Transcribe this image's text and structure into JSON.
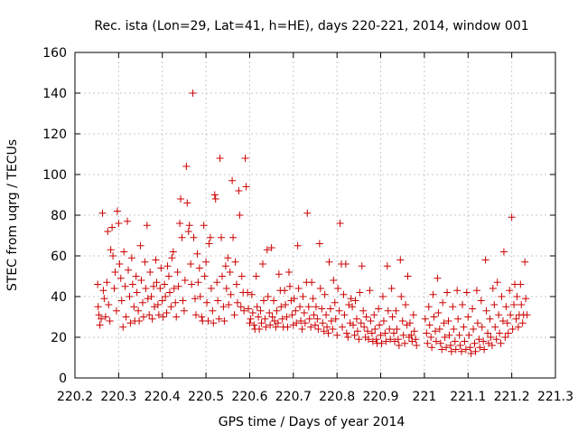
{
  "chart_data": {
    "type": "scatter",
    "title": "Rec. ista (Lon=29, Lat=41, h=HE), days 220-221, 2014, window 001",
    "xlabel": "GPS time / Days of year 2014",
    "ylabel": "STEC from uqrg / TECUs",
    "xlim": [
      220.2,
      221.3
    ],
    "ylim": [
      0,
      160
    ],
    "xticks": [
      "220.2",
      "220.3",
      "220.4",
      "220.5",
      "220.6",
      "220.7",
      "220.8",
      "220.9",
      "221",
      "221.1",
      "221.2",
      "221.3"
    ],
    "yticks": [
      "0",
      "20",
      "40",
      "60",
      "80",
      "100",
      "120",
      "140",
      "160"
    ],
    "grid": true,
    "marker": "plus",
    "color": "#cc0000",
    "points": [
      [
        220.252,
        46
      ],
      [
        220.253,
        35
      ],
      [
        220.255,
        31
      ],
      [
        220.257,
        26
      ],
      [
        220.26,
        29
      ],
      [
        220.263,
        81
      ],
      [
        220.265,
        43
      ],
      [
        220.267,
        39
      ],
      [
        220.27,
        30
      ],
      [
        220.273,
        47
      ],
      [
        220.275,
        72
      ],
      [
        220.277,
        36
      ],
      [
        220.28,
        28
      ],
      [
        220.282,
        63
      ],
      [
        220.285,
        74
      ],
      [
        220.287,
        60
      ],
      [
        220.29,
        44
      ],
      [
        220.292,
        52
      ],
      [
        220.295,
        33
      ],
      [
        220.297,
        82
      ],
      [
        220.3,
        76
      ],
      [
        220.302,
        56
      ],
      [
        220.305,
        49
      ],
      [
        220.307,
        38
      ],
      [
        220.31,
        25
      ],
      [
        220.312,
        62
      ],
      [
        220.315,
        45
      ],
      [
        220.317,
        30
      ],
      [
        220.32,
        77
      ],
      [
        220.322,
        53
      ],
      [
        220.325,
        40
      ],
      [
        220.327,
        27
      ],
      [
        220.33,
        59
      ],
      [
        220.332,
        46
      ],
      [
        220.335,
        35
      ],
      [
        220.337,
        28
      ],
      [
        220.34,
        50
      ],
      [
        220.342,
        42
      ],
      [
        220.345,
        33
      ],
      [
        220.347,
        28
      ],
      [
        220.35,
        65
      ],
      [
        220.352,
        48
      ],
      [
        220.355,
        37
      ],
      [
        220.357,
        30
      ],
      [
        220.36,
        57
      ],
      [
        220.362,
        44
      ],
      [
        220.365,
        75
      ],
      [
        220.367,
        39
      ],
      [
        220.37,
        31
      ],
      [
        220.372,
        52
      ],
      [
        220.375,
        40
      ],
      [
        220.377,
        29
      ],
      [
        220.38,
        45
      ],
      [
        220.382,
        35
      ],
      [
        220.385,
        58
      ],
      [
        220.387,
        47
      ],
      [
        220.39,
        36
      ],
      [
        220.392,
        31
      ],
      [
        220.395,
        44
      ],
      [
        220.397,
        54
      ],
      [
        220.4,
        38
      ],
      [
        220.402,
        30
      ],
      [
        220.405,
        46
      ],
      [
        220.407,
        40
      ],
      [
        220.41,
        32
      ],
      [
        220.412,
        55
      ],
      [
        220.415,
        50
      ],
      [
        220.417,
        42
      ],
      [
        220.42,
        35
      ],
      [
        220.422,
        59
      ],
      [
        220.425,
        62
      ],
      [
        220.427,
        44
      ],
      [
        220.43,
        37
      ],
      [
        220.432,
        30
      ],
      [
        220.435,
        52
      ],
      [
        220.437,
        45
      ],
      [
        220.44,
        76
      ],
      [
        220.442,
        88
      ],
      [
        220.445,
        69
      ],
      [
        220.447,
        38
      ],
      [
        220.45,
        33
      ],
      [
        220.452,
        48
      ],
      [
        220.455,
        104
      ],
      [
        220.457,
        86
      ],
      [
        220.46,
        72
      ],
      [
        220.462,
        75
      ],
      [
        220.465,
        56
      ],
      [
        220.467,
        46
      ],
      [
        220.47,
        140
      ],
      [
        220.472,
        69
      ],
      [
        220.475,
        39
      ],
      [
        220.477,
        31
      ],
      [
        220.48,
        61
      ],
      [
        220.482,
        47
      ],
      [
        220.485,
        54
      ],
      [
        220.487,
        40
      ],
      [
        220.49,
        30
      ],
      [
        220.492,
        28
      ],
      [
        220.495,
        75
      ],
      [
        220.497,
        50
      ],
      [
        220.5,
        57
      ],
      [
        220.502,
        37
      ],
      [
        220.505,
        28
      ],
      [
        220.507,
        66
      ],
      [
        220.51,
        69
      ],
      [
        220.512,
        44
      ],
      [
        220.515,
        33
      ],
      [
        220.517,
        27
      ],
      [
        220.52,
        90
      ],
      [
        220.522,
        88
      ],
      [
        220.525,
        47
      ],
      [
        220.527,
        38
      ],
      [
        220.53,
        29
      ],
      [
        220.532,
        108
      ],
      [
        220.535,
        69
      ],
      [
        220.537,
        50
      ],
      [
        220.54,
        35
      ],
      [
        220.542,
        28
      ],
      [
        220.545,
        55
      ],
      [
        220.547,
        44
      ],
      [
        220.55,
        59
      ],
      [
        220.552,
        36
      ],
      [
        220.555,
        52
      ],
      [
        220.557,
        41
      ],
      [
        220.56,
        97
      ],
      [
        220.562,
        69
      ],
      [
        220.565,
        31
      ],
      [
        220.567,
        57
      ],
      [
        220.57,
        46
      ],
      [
        220.572,
        37
      ],
      [
        220.575,
        92
      ],
      [
        220.577,
        80
      ],
      [
        220.58,
        35
      ],
      [
        220.582,
        50
      ],
      [
        220.585,
        42
      ],
      [
        220.587,
        33
      ],
      [
        220.59,
        108
      ],
      [
        220.592,
        94
      ],
      [
        220.595,
        42
      ],
      [
        220.597,
        34
      ],
      [
        220.6,
        27
      ],
      [
        220.602,
        29
      ],
      [
        220.605,
        41
      ],
      [
        220.607,
        32
      ],
      [
        220.61,
        26
      ],
      [
        220.612,
        24
      ],
      [
        220.615,
        50
      ],
      [
        220.617,
        35
      ],
      [
        220.62,
        30
      ],
      [
        220.622,
        24
      ],
      [
        220.625,
        33
      ],
      [
        220.627,
        27
      ],
      [
        220.63,
        56
      ],
      [
        220.632,
        38
      ],
      [
        220.635,
        29
      ],
      [
        220.637,
        25
      ],
      [
        220.64,
        63
      ],
      [
        220.642,
        40
      ],
      [
        220.645,
        32
      ],
      [
        220.647,
        26
      ],
      [
        220.65,
        64
      ],
      [
        220.652,
        30
      ],
      [
        220.655,
        38
      ],
      [
        220.657,
        28
      ],
      [
        220.66,
        25
      ],
      [
        220.662,
        33
      ],
      [
        220.665,
        27
      ],
      [
        220.667,
        51
      ],
      [
        220.67,
        43
      ],
      [
        220.672,
        35
      ],
      [
        220.675,
        29
      ],
      [
        220.677,
        25
      ],
      [
        220.68,
        43
      ],
      [
        220.682,
        36
      ],
      [
        220.685,
        30
      ],
      [
        220.687,
        25
      ],
      [
        220.69,
        52
      ],
      [
        220.692,
        45
      ],
      [
        220.695,
        38
      ],
      [
        220.697,
        31
      ],
      [
        220.7,
        26
      ],
      [
        220.702,
        39
      ],
      [
        220.705,
        33
      ],
      [
        220.707,
        27
      ],
      [
        220.71,
        65
      ],
      [
        220.712,
        44
      ],
      [
        220.715,
        35
      ],
      [
        220.717,
        28
      ],
      [
        220.72,
        24
      ],
      [
        220.722,
        40
      ],
      [
        220.725,
        32
      ],
      [
        220.727,
        27
      ],
      [
        220.73,
        47
      ],
      [
        220.732,
        81
      ],
      [
        220.735,
        35
      ],
      [
        220.737,
        29
      ],
      [
        220.74,
        25
      ],
      [
        220.742,
        47
      ],
      [
        220.745,
        39
      ],
      [
        220.747,
        31
      ],
      [
        220.75,
        26
      ],
      [
        220.752,
        35
      ],
      [
        220.755,
        29
      ],
      [
        220.757,
        24
      ],
      [
        220.76,
        66
      ],
      [
        220.762,
        44
      ],
      [
        220.765,
        34
      ],
      [
        220.767,
        27
      ],
      [
        220.77,
        23
      ],
      [
        220.772,
        41
      ],
      [
        220.775,
        31
      ],
      [
        220.777,
        25
      ],
      [
        220.78,
        22
      ],
      [
        220.782,
        57
      ],
      [
        220.785,
        34
      ],
      [
        220.787,
        28
      ],
      [
        220.79,
        24
      ],
      [
        220.792,
        48
      ],
      [
        220.795,
        37
      ],
      [
        220.797,
        29
      ],
      [
        220.8,
        21
      ],
      [
        220.802,
        44
      ],
      [
        220.805,
        33
      ],
      [
        220.807,
        76
      ],
      [
        220.81,
        56
      ],
      [
        220.812,
        25
      ],
      [
        220.815,
        41
      ],
      [
        220.817,
        31
      ],
      [
        220.82,
        56
      ],
      [
        220.822,
        22
      ],
      [
        220.825,
        20
      ],
      [
        220.827,
        36
      ],
      [
        220.83,
        27
      ],
      [
        220.832,
        39
      ],
      [
        220.835,
        35
      ],
      [
        220.837,
        26
      ],
      [
        220.84,
        21
      ],
      [
        220.842,
        38
      ],
      [
        220.845,
        29
      ],
      [
        220.847,
        23
      ],
      [
        220.85,
        19
      ],
      [
        220.852,
        42
      ],
      [
        220.855,
        27
      ],
      [
        220.857,
        55
      ],
      [
        220.86,
        33
      ],
      [
        220.862,
        25
      ],
      [
        220.865,
        20
      ],
      [
        220.867,
        30
      ],
      [
        220.87,
        23
      ],
      [
        220.872,
        19
      ],
      [
        220.875,
        43
      ],
      [
        220.877,
        28
      ],
      [
        220.88,
        22
      ],
      [
        220.882,
        18
      ],
      [
        220.885,
        31
      ],
      [
        220.887,
        24
      ],
      [
        220.89,
        19
      ],
      [
        220.892,
        17
      ],
      [
        220.895,
        34
      ],
      [
        220.897,
        26
      ],
      [
        220.9,
        21
      ],
      [
        220.902,
        17
      ],
      [
        220.905,
        40
      ],
      [
        220.907,
        28
      ],
      [
        220.91,
        22
      ],
      [
        220.912,
        18
      ],
      [
        220.915,
        55
      ],
      [
        220.917,
        33
      ],
      [
        220.92,
        24
      ],
      [
        220.922,
        19
      ],
      [
        220.925,
        44
      ],
      [
        220.927,
        30
      ],
      [
        220.93,
        22
      ],
      [
        220.932,
        18
      ],
      [
        220.935,
        33
      ],
      [
        220.937,
        24
      ],
      [
        220.94,
        19
      ],
      [
        220.942,
        16
      ],
      [
        220.945,
        58
      ],
      [
        220.947,
        40
      ],
      [
        220.95,
        28
      ],
      [
        220.952,
        21
      ],
      [
        220.955,
        17
      ],
      [
        220.957,
        36
      ],
      [
        220.96,
        26
      ],
      [
        220.962,
        50
      ],
      [
        220.965,
        20
      ],
      [
        220.967,
        27
      ],
      [
        220.97,
        21
      ],
      [
        220.972,
        18
      ],
      [
        220.975,
        31
      ],
      [
        220.977,
        23
      ],
      [
        220.98,
        19
      ],
      [
        220.982,
        16
      ],
      [
        221.002,
        29
      ],
      [
        221.005,
        22
      ],
      [
        221.007,
        17
      ],
      [
        221.01,
        35
      ],
      [
        221.012,
        26
      ],
      [
        221.015,
        20
      ],
      [
        221.017,
        15
      ],
      [
        221.02,
        41
      ],
      [
        221.022,
        30
      ],
      [
        221.025,
        23
      ],
      [
        221.027,
        18
      ],
      [
        221.03,
        49
      ],
      [
        221.032,
        32
      ],
      [
        221.035,
        24
      ],
      [
        221.037,
        17
      ],
      [
        221.04,
        14
      ],
      [
        221.042,
        37
      ],
      [
        221.045,
        27
      ],
      [
        221.047,
        20
      ],
      [
        221.05,
        15
      ],
      [
        221.052,
        42
      ],
      [
        221.055,
        28
      ],
      [
        221.057,
        21
      ],
      [
        221.06,
        16
      ],
      [
        221.062,
        13
      ],
      [
        221.065,
        35
      ],
      [
        221.067,
        24
      ],
      [
        221.07,
        18
      ],
      [
        221.072,
        14
      ],
      [
        221.075,
        43
      ],
      [
        221.077,
        29
      ],
      [
        221.08,
        21
      ],
      [
        221.082,
        16
      ],
      [
        221.085,
        13
      ],
      [
        221.087,
        36
      ],
      [
        221.09,
        25
      ],
      [
        221.092,
        18
      ],
      [
        221.095,
        14
      ],
      [
        221.097,
        42
      ],
      [
        221.1,
        30
      ],
      [
        221.102,
        21
      ],
      [
        221.105,
        15
      ],
      [
        221.107,
        12
      ],
      [
        221.11,
        34
      ],
      [
        221.112,
        24
      ],
      [
        221.115,
        17
      ],
      [
        221.117,
        13
      ],
      [
        221.12,
        43
      ],
      [
        221.122,
        27
      ],
      [
        221.125,
        19
      ],
      [
        221.127,
        15
      ],
      [
        221.13,
        38
      ],
      [
        221.132,
        25
      ],
      [
        221.135,
        18
      ],
      [
        221.137,
        14
      ],
      [
        221.14,
        58
      ],
      [
        221.142,
        33
      ],
      [
        221.145,
        22
      ],
      [
        221.147,
        17
      ],
      [
        221.15,
        29
      ],
      [
        221.152,
        20
      ],
      [
        221.155,
        16
      ],
      [
        221.157,
        44
      ],
      [
        221.16,
        36
      ],
      [
        221.162,
        25
      ],
      [
        221.165,
        19
      ],
      [
        221.167,
        47
      ],
      [
        221.17,
        31
      ],
      [
        221.172,
        22
      ],
      [
        221.175,
        17
      ],
      [
        221.177,
        40
      ],
      [
        221.18,
        28
      ],
      [
        221.182,
        62
      ],
      [
        221.185,
        20
      ],
      [
        221.187,
        35
      ],
      [
        221.19,
        27
      ],
      [
        221.192,
        22
      ],
      [
        221.195,
        43
      ],
      [
        221.197,
        31
      ],
      [
        221.2,
        79
      ],
      [
        221.202,
        24
      ],
      [
        221.205,
        36
      ],
      [
        221.207,
        46
      ],
      [
        221.21,
        29
      ],
      [
        221.212,
        40
      ],
      [
        221.215,
        25
      ],
      [
        221.217,
        31
      ],
      [
        221.22,
        46
      ],
      [
        221.222,
        36
      ],
      [
        221.225,
        27
      ],
      [
        221.227,
        31
      ],
      [
        221.23,
        57
      ],
      [
        221.232,
        39
      ],
      [
        221.235,
        31
      ]
    ]
  }
}
